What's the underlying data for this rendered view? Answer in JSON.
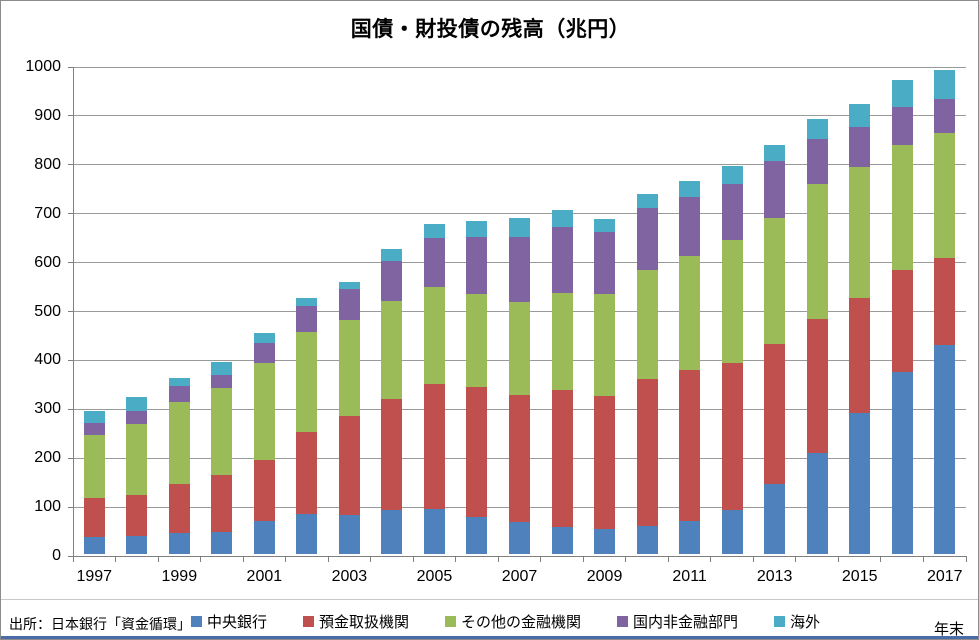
{
  "title": "国債・財投債の残高（兆円）",
  "source_note": "出所：日本銀行「資金循環」",
  "x_unit_label": "年末",
  "colors": {
    "central_bank_blue": "#4F81BD",
    "deposit_institutions_red": "#C0504D",
    "other_financial_green": "#9BBB59",
    "domestic_nonfinancial_purple": "#8064A2",
    "overseas_cyan": "#4BACC6",
    "gridline_gray": "#9A9A9A",
    "axis_gray": "#7F7F7F"
  },
  "chart_data": {
    "type": "bar",
    "stacked": true,
    "title": "国債・財投債の残高（兆円）",
    "xlabel": "年末",
    "ylabel": "",
    "ylim": [
      0,
      1000
    ],
    "ytick_step": 100,
    "grid": true,
    "legend_position": "bottom",
    "x_label_every": 2,
    "categories": [
      1997,
      1998,
      1999,
      2000,
      2001,
      2002,
      2003,
      2004,
      2005,
      2006,
      2007,
      2008,
      2009,
      2010,
      2011,
      2012,
      2013,
      2014,
      2015,
      2016,
      2017
    ],
    "series": [
      {
        "name": "中央銀行",
        "color": "#4F81BD",
        "values": [
          34,
          36,
          43,
          46,
          68,
          82,
          80,
          91,
          93,
          76,
          66,
          56,
          51,
          58,
          68,
          90,
          143,
          206,
          288,
          373,
          428
        ]
      },
      {
        "name": "預金取扱機関",
        "color": "#C0504D",
        "values": [
          81,
          84,
          101,
          115,
          125,
          167,
          203,
          227,
          254,
          265,
          259,
          280,
          273,
          300,
          308,
          300,
          286,
          275,
          236,
          207,
          178
        ]
      },
      {
        "name": "その他の金融機関",
        "color": "#9BBB59",
        "values": [
          129,
          146,
          166,
          179,
          198,
          206,
          195,
          200,
          199,
          191,
          191,
          197,
          208,
          222,
          234,
          252,
          259,
          275,
          267,
          256,
          255
        ]
      },
      {
        "name": "国内非金融部門",
        "color": "#8064A2",
        "values": [
          24,
          26,
          33,
          27,
          41,
          53,
          64,
          82,
          101,
          116,
          132,
          135,
          127,
          127,
          121,
          115,
          115,
          92,
          82,
          78,
          70
        ]
      },
      {
        "name": "海外",
        "color": "#4BACC6",
        "values": [
          24,
          30,
          18,
          25,
          20,
          15,
          15,
          24,
          27,
          33,
          39,
          36,
          27,
          29,
          31,
          36,
          34,
          42,
          48,
          55,
          59
        ]
      }
    ]
  }
}
